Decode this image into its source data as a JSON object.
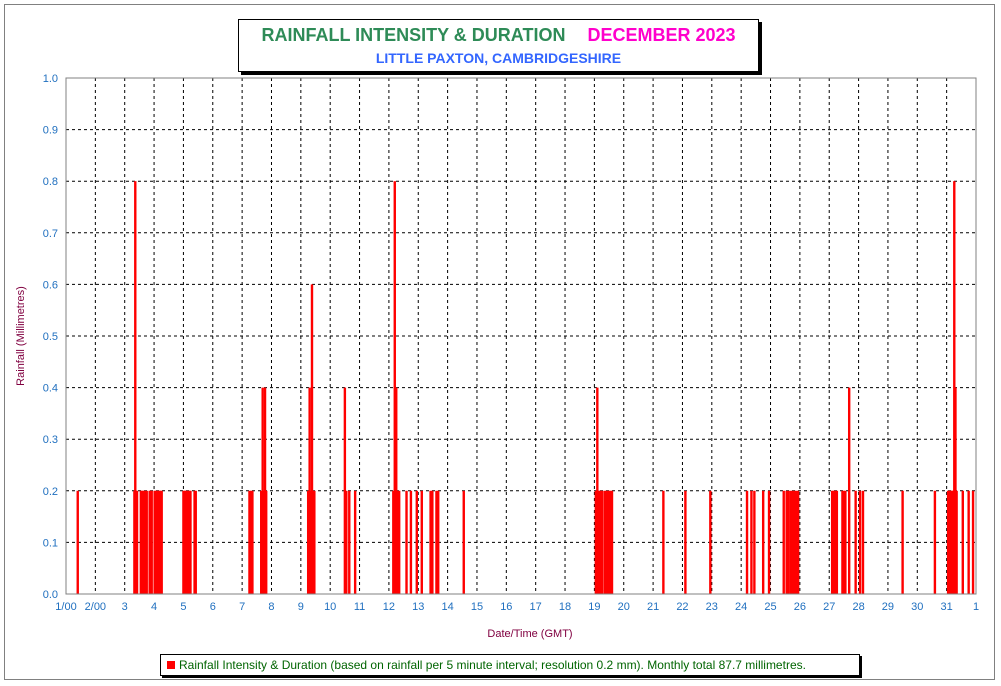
{
  "title": {
    "main": "RAINFALL INTENSITY & DURATION",
    "month": "DECEMBER 2023",
    "location": "LITTLE PAXTON, CAMBRIDGESHIRE"
  },
  "legend": {
    "text": "Rainfall Intensity & Duration (based on rainfall per 5 minute interval; resolution 0.2 mm). Monthly total 87.7 millimetres."
  },
  "colors": {
    "bar": "#ff0000",
    "grid": "#000000",
    "axis_text": "#1f6fbf",
    "axis_title": "#800040"
  },
  "chart_data": {
    "type": "bar",
    "title": "RAINFALL INTENSITY & DURATION    DECEMBER 2023",
    "subtitle": "LITTLE PAXTON, CAMBRIDGESHIRE",
    "xlabel": "Date/Time (GMT)",
    "ylabel": "Rainfall (Millimetres)",
    "ylim": [
      0,
      1.0
    ],
    "xlim": [
      1.0,
      32.0
    ],
    "grid": true,
    "legend_position": "bottom",
    "y_ticks": [
      "0.0",
      "0.1",
      "0.2",
      "0.3",
      "0.4",
      "0.5",
      "0.6",
      "0.7",
      "0.8",
      "0.9",
      "1.0"
    ],
    "x_tick_labels": [
      "1/00",
      "2/00",
      "3",
      "4",
      "5",
      "6",
      "7",
      "8",
      "9",
      "10",
      "11",
      "12",
      "13",
      "14",
      "15",
      "16",
      "17",
      "18",
      "19",
      "20",
      "21",
      "22",
      "23",
      "24",
      "25",
      "26",
      "27",
      "28",
      "29",
      "30",
      "31",
      "1"
    ],
    "series": [
      {
        "name": "Rainfall Intensity & Duration",
        "x_unit": "day of month",
        "points": [
          [
            1.4,
            0.2
          ],
          [
            3.33,
            0.2
          ],
          [
            3.36,
            0.8
          ],
          [
            3.39,
            0.2
          ],
          [
            3.42,
            0.2
          ],
          [
            3.55,
            0.2
          ],
          [
            3.58,
            0.2
          ],
          [
            3.62,
            0.2
          ],
          [
            3.66,
            0.2
          ],
          [
            3.7,
            0.2
          ],
          [
            3.75,
            0.2
          ],
          [
            3.85,
            0.2
          ],
          [
            3.88,
            0.2
          ],
          [
            3.92,
            0.2
          ],
          [
            4.02,
            0.2
          ],
          [
            4.06,
            0.2
          ],
          [
            4.1,
            0.2
          ],
          [
            4.14,
            0.2
          ],
          [
            4.18,
            0.2
          ],
          [
            4.22,
            0.2
          ],
          [
            4.26,
            0.2
          ],
          [
            5.0,
            0.2
          ],
          [
            5.04,
            0.2
          ],
          [
            5.08,
            0.2
          ],
          [
            5.12,
            0.2
          ],
          [
            5.16,
            0.2
          ],
          [
            5.2,
            0.2
          ],
          [
            5.24,
            0.2
          ],
          [
            5.38,
            0.2
          ],
          [
            5.42,
            0.2
          ],
          [
            7.25,
            0.2
          ],
          [
            7.3,
            0.2
          ],
          [
            7.35,
            0.2
          ],
          [
            7.65,
            0.2
          ],
          [
            7.7,
            0.4
          ],
          [
            7.74,
            0.2
          ],
          [
            7.78,
            0.4
          ],
          [
            7.82,
            0.2
          ],
          [
            9.25,
            0.2
          ],
          [
            9.3,
            0.4
          ],
          [
            9.34,
            0.2
          ],
          [
            9.38,
            0.6
          ],
          [
            9.42,
            0.2
          ],
          [
            9.46,
            0.2
          ],
          [
            10.5,
            0.4
          ],
          [
            10.55,
            0.2
          ],
          [
            10.65,
            0.2
          ],
          [
            10.85,
            0.2
          ],
          [
            12.15,
            0.2
          ],
          [
            12.2,
            0.8
          ],
          [
            12.25,
            0.4
          ],
          [
            12.3,
            0.2
          ],
          [
            12.35,
            0.2
          ],
          [
            12.6,
            0.2
          ],
          [
            12.75,
            0.2
          ],
          [
            12.95,
            0.2
          ],
          [
            13.12,
            0.2
          ],
          [
            13.42,
            0.2
          ],
          [
            13.48,
            0.2
          ],
          [
            13.62,
            0.2
          ],
          [
            13.68,
            0.2
          ],
          [
            14.55,
            0.2
          ],
          [
            19.05,
            0.2
          ],
          [
            19.1,
            0.4
          ],
          [
            19.14,
            0.2
          ],
          [
            19.18,
            0.2
          ],
          [
            19.22,
            0.2
          ],
          [
            19.26,
            0.2
          ],
          [
            19.35,
            0.2
          ],
          [
            19.4,
            0.2
          ],
          [
            19.45,
            0.2
          ],
          [
            19.5,
            0.2
          ],
          [
            19.55,
            0.2
          ],
          [
            19.6,
            0.2
          ],
          [
            21.35,
            0.2
          ],
          [
            22.1,
            0.2
          ],
          [
            22.95,
            0.2
          ],
          [
            24.2,
            0.2
          ],
          [
            24.35,
            0.2
          ],
          [
            24.45,
            0.2
          ],
          [
            24.75,
            0.2
          ],
          [
            24.95,
            0.2
          ],
          [
            25.45,
            0.2
          ],
          [
            25.55,
            0.2
          ],
          [
            25.62,
            0.2
          ],
          [
            25.7,
            0.2
          ],
          [
            25.76,
            0.2
          ],
          [
            25.82,
            0.2
          ],
          [
            25.88,
            0.2
          ],
          [
            25.94,
            0.2
          ],
          [
            27.1,
            0.2
          ],
          [
            27.14,
            0.2
          ],
          [
            27.18,
            0.2
          ],
          [
            27.22,
            0.2
          ],
          [
            27.26,
            0.2
          ],
          [
            27.45,
            0.2
          ],
          [
            27.5,
            0.2
          ],
          [
            27.55,
            0.2
          ],
          [
            27.68,
            0.4
          ],
          [
            27.9,
            0.2
          ],
          [
            28.05,
            0.2
          ],
          [
            28.15,
            0.2
          ],
          [
            29.5,
            0.2
          ],
          [
            30.6,
            0.2
          ],
          [
            31.05,
            0.2
          ],
          [
            31.08,
            0.2
          ],
          [
            31.11,
            0.2
          ],
          [
            31.14,
            0.2
          ],
          [
            31.17,
            0.2
          ],
          [
            31.2,
            0.2
          ],
          [
            31.23,
            0.2
          ],
          [
            31.26,
            0.8
          ],
          [
            31.3,
            0.4
          ],
          [
            31.34,
            0.2
          ],
          [
            31.55,
            0.2
          ],
          [
            31.75,
            0.2
          ],
          [
            31.9,
            0.2
          ]
        ]
      }
    ]
  }
}
